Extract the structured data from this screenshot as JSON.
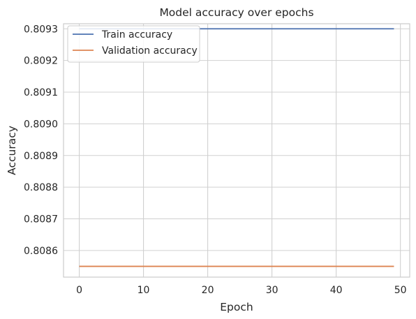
{
  "chart_data": {
    "type": "line",
    "title": "Model accuracy over epochs",
    "xlabel": "Epoch",
    "ylabel": "Accuracy",
    "xlim": [
      -2.45,
      51.45
    ],
    "ylim": [
      0.808516,
      0.809316
    ],
    "xticks": [
      0,
      10,
      20,
      30,
      40,
      50
    ],
    "xtick_labels": [
      "0",
      "10",
      "20",
      "30",
      "40",
      "50"
    ],
    "yticks": [
      0.8086,
      0.8087,
      0.8088,
      0.8089,
      0.809,
      0.8091,
      0.8092,
      0.8093
    ],
    "ytick_labels": [
      "0.8086",
      "0.8087",
      "0.8088",
      "0.8089",
      "0.8090",
      "0.8091",
      "0.8092",
      "0.8093"
    ],
    "grid": true,
    "legend_position": "top-left",
    "series": [
      {
        "name": "Train accuracy",
        "color": "#4c72b0",
        "x": [
          0,
          49
        ],
        "values": [
          0.8093,
          0.8093
        ]
      },
      {
        "name": "Validation accuracy",
        "color": "#dd8452",
        "x": [
          0,
          49
        ],
        "values": [
          0.80855,
          0.80855
        ]
      }
    ]
  }
}
